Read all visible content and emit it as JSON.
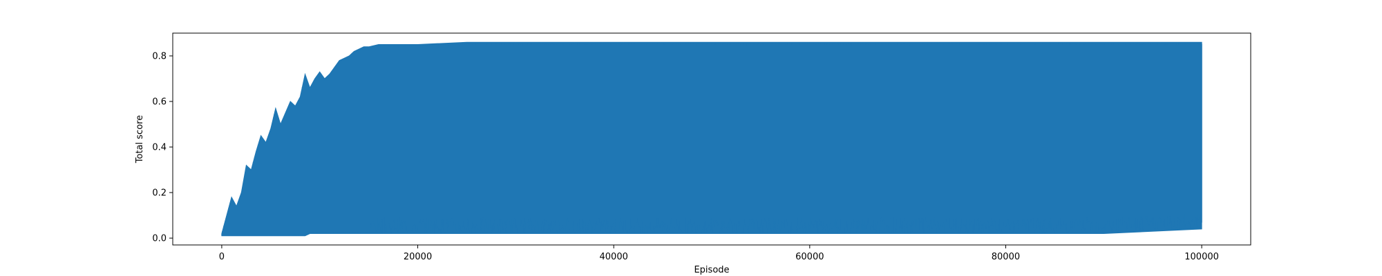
{
  "chart_data": {
    "type": "line",
    "title": "",
    "xlabel": "Episode",
    "ylabel": "Total score",
    "xlim": [
      -5000,
      105000
    ],
    "ylim": [
      -0.03,
      0.9
    ],
    "x_ticks": [
      0,
      20000,
      40000,
      60000,
      80000,
      100000
    ],
    "x_tick_labels": [
      "0",
      "20000",
      "40000",
      "60000",
      "80000",
      "100000"
    ],
    "y_ticks": [
      0.0,
      0.2,
      0.4,
      0.6,
      0.8
    ],
    "y_tick_labels": [
      "0.0",
      "0.2",
      "0.4",
      "0.6",
      "0.8"
    ],
    "grid": false,
    "legend": "none",
    "series": [
      {
        "color": "#1f77b4",
        "x": [
          0,
          500,
          1000,
          1500,
          2000,
          2500,
          3000,
          3500,
          4000,
          4500,
          5000,
          5500,
          6000,
          6500,
          7000,
          7500,
          8000,
          8500,
          9000,
          9500,
          10000,
          10500,
          11000,
          11500,
          12000,
          12500,
          13000,
          13500,
          14000,
          14500,
          15000,
          16000,
          17000,
          18000,
          20000,
          25000,
          30000,
          40000,
          50000,
          60000,
          70000,
          80000,
          90000,
          100000
        ],
        "upper": [
          0.02,
          0.1,
          0.18,
          0.14,
          0.2,
          0.32,
          0.3,
          0.38,
          0.45,
          0.42,
          0.48,
          0.57,
          0.5,
          0.55,
          0.6,
          0.58,
          0.62,
          0.72,
          0.66,
          0.7,
          0.73,
          0.7,
          0.72,
          0.75,
          0.78,
          0.79,
          0.8,
          0.82,
          0.83,
          0.84,
          0.84,
          0.85,
          0.85,
          0.85,
          0.85,
          0.86,
          0.86,
          0.86,
          0.86,
          0.86,
          0.86,
          0.86,
          0.86,
          0.86
        ],
        "lower": [
          0.01,
          0.01,
          0.01,
          0.01,
          0.01,
          0.01,
          0.01,
          0.01,
          0.01,
          0.01,
          0.01,
          0.01,
          0.01,
          0.01,
          0.01,
          0.01,
          0.01,
          0.01,
          0.02,
          0.02,
          0.02,
          0.02,
          0.02,
          0.02,
          0.02,
          0.02,
          0.02,
          0.02,
          0.02,
          0.02,
          0.02,
          0.02,
          0.02,
          0.02,
          0.02,
          0.02,
          0.02,
          0.02,
          0.02,
          0.02,
          0.02,
          0.02,
          0.02,
          0.04
        ]
      }
    ]
  }
}
